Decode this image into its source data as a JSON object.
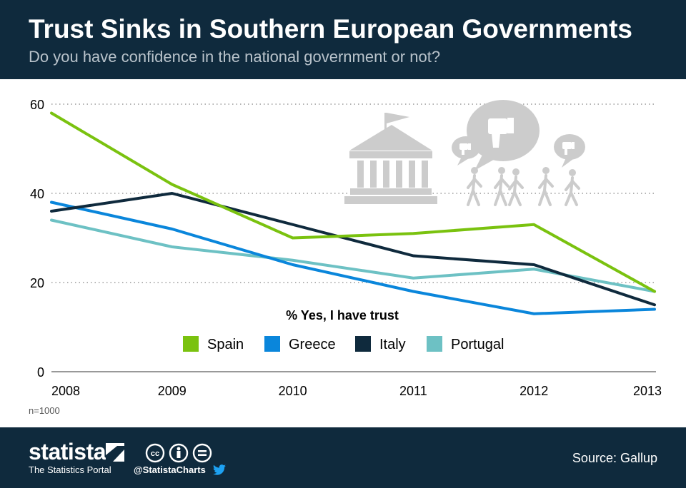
{
  "header": {
    "title": "Trust Sinks in Southern European Governments",
    "subtitle": "Do you have confidence in the national government or not?"
  },
  "note": "n=1000",
  "footer": {
    "brand": "statista",
    "tagline": "The Statistics Portal",
    "handle": "@StatistaCharts",
    "source": "Source: Gallup"
  },
  "colors": {
    "header_bg": "#0f2a3d",
    "spain": "#7ac20f",
    "greece": "#0a86db",
    "italy": "#0f2a3d",
    "portugal": "#6dc1c4",
    "illustration": "#cccccc"
  },
  "chart_data": {
    "type": "line",
    "title": "% Yes, I have trust",
    "x": [
      "2008",
      "2009",
      "2010",
      "2011",
      "2012",
      "2013"
    ],
    "ylim": [
      0,
      60
    ],
    "yticks": [
      0,
      20,
      40,
      60
    ],
    "grid": true,
    "legend_position": "center",
    "series": [
      {
        "name": "Spain",
        "color": "#7ac20f",
        "values": [
          58,
          42,
          30,
          31,
          33,
          18
        ]
      },
      {
        "name": "Greece",
        "color": "#0a86db",
        "values": [
          38,
          32,
          24,
          18,
          13,
          14
        ]
      },
      {
        "name": "Italy",
        "color": "#0f2a3d",
        "values": [
          36,
          40,
          33,
          26,
          24,
          15
        ]
      },
      {
        "name": "Portugal",
        "color": "#6dc1c4",
        "values": [
          34,
          28,
          25,
          21,
          23,
          18
        ]
      }
    ]
  }
}
